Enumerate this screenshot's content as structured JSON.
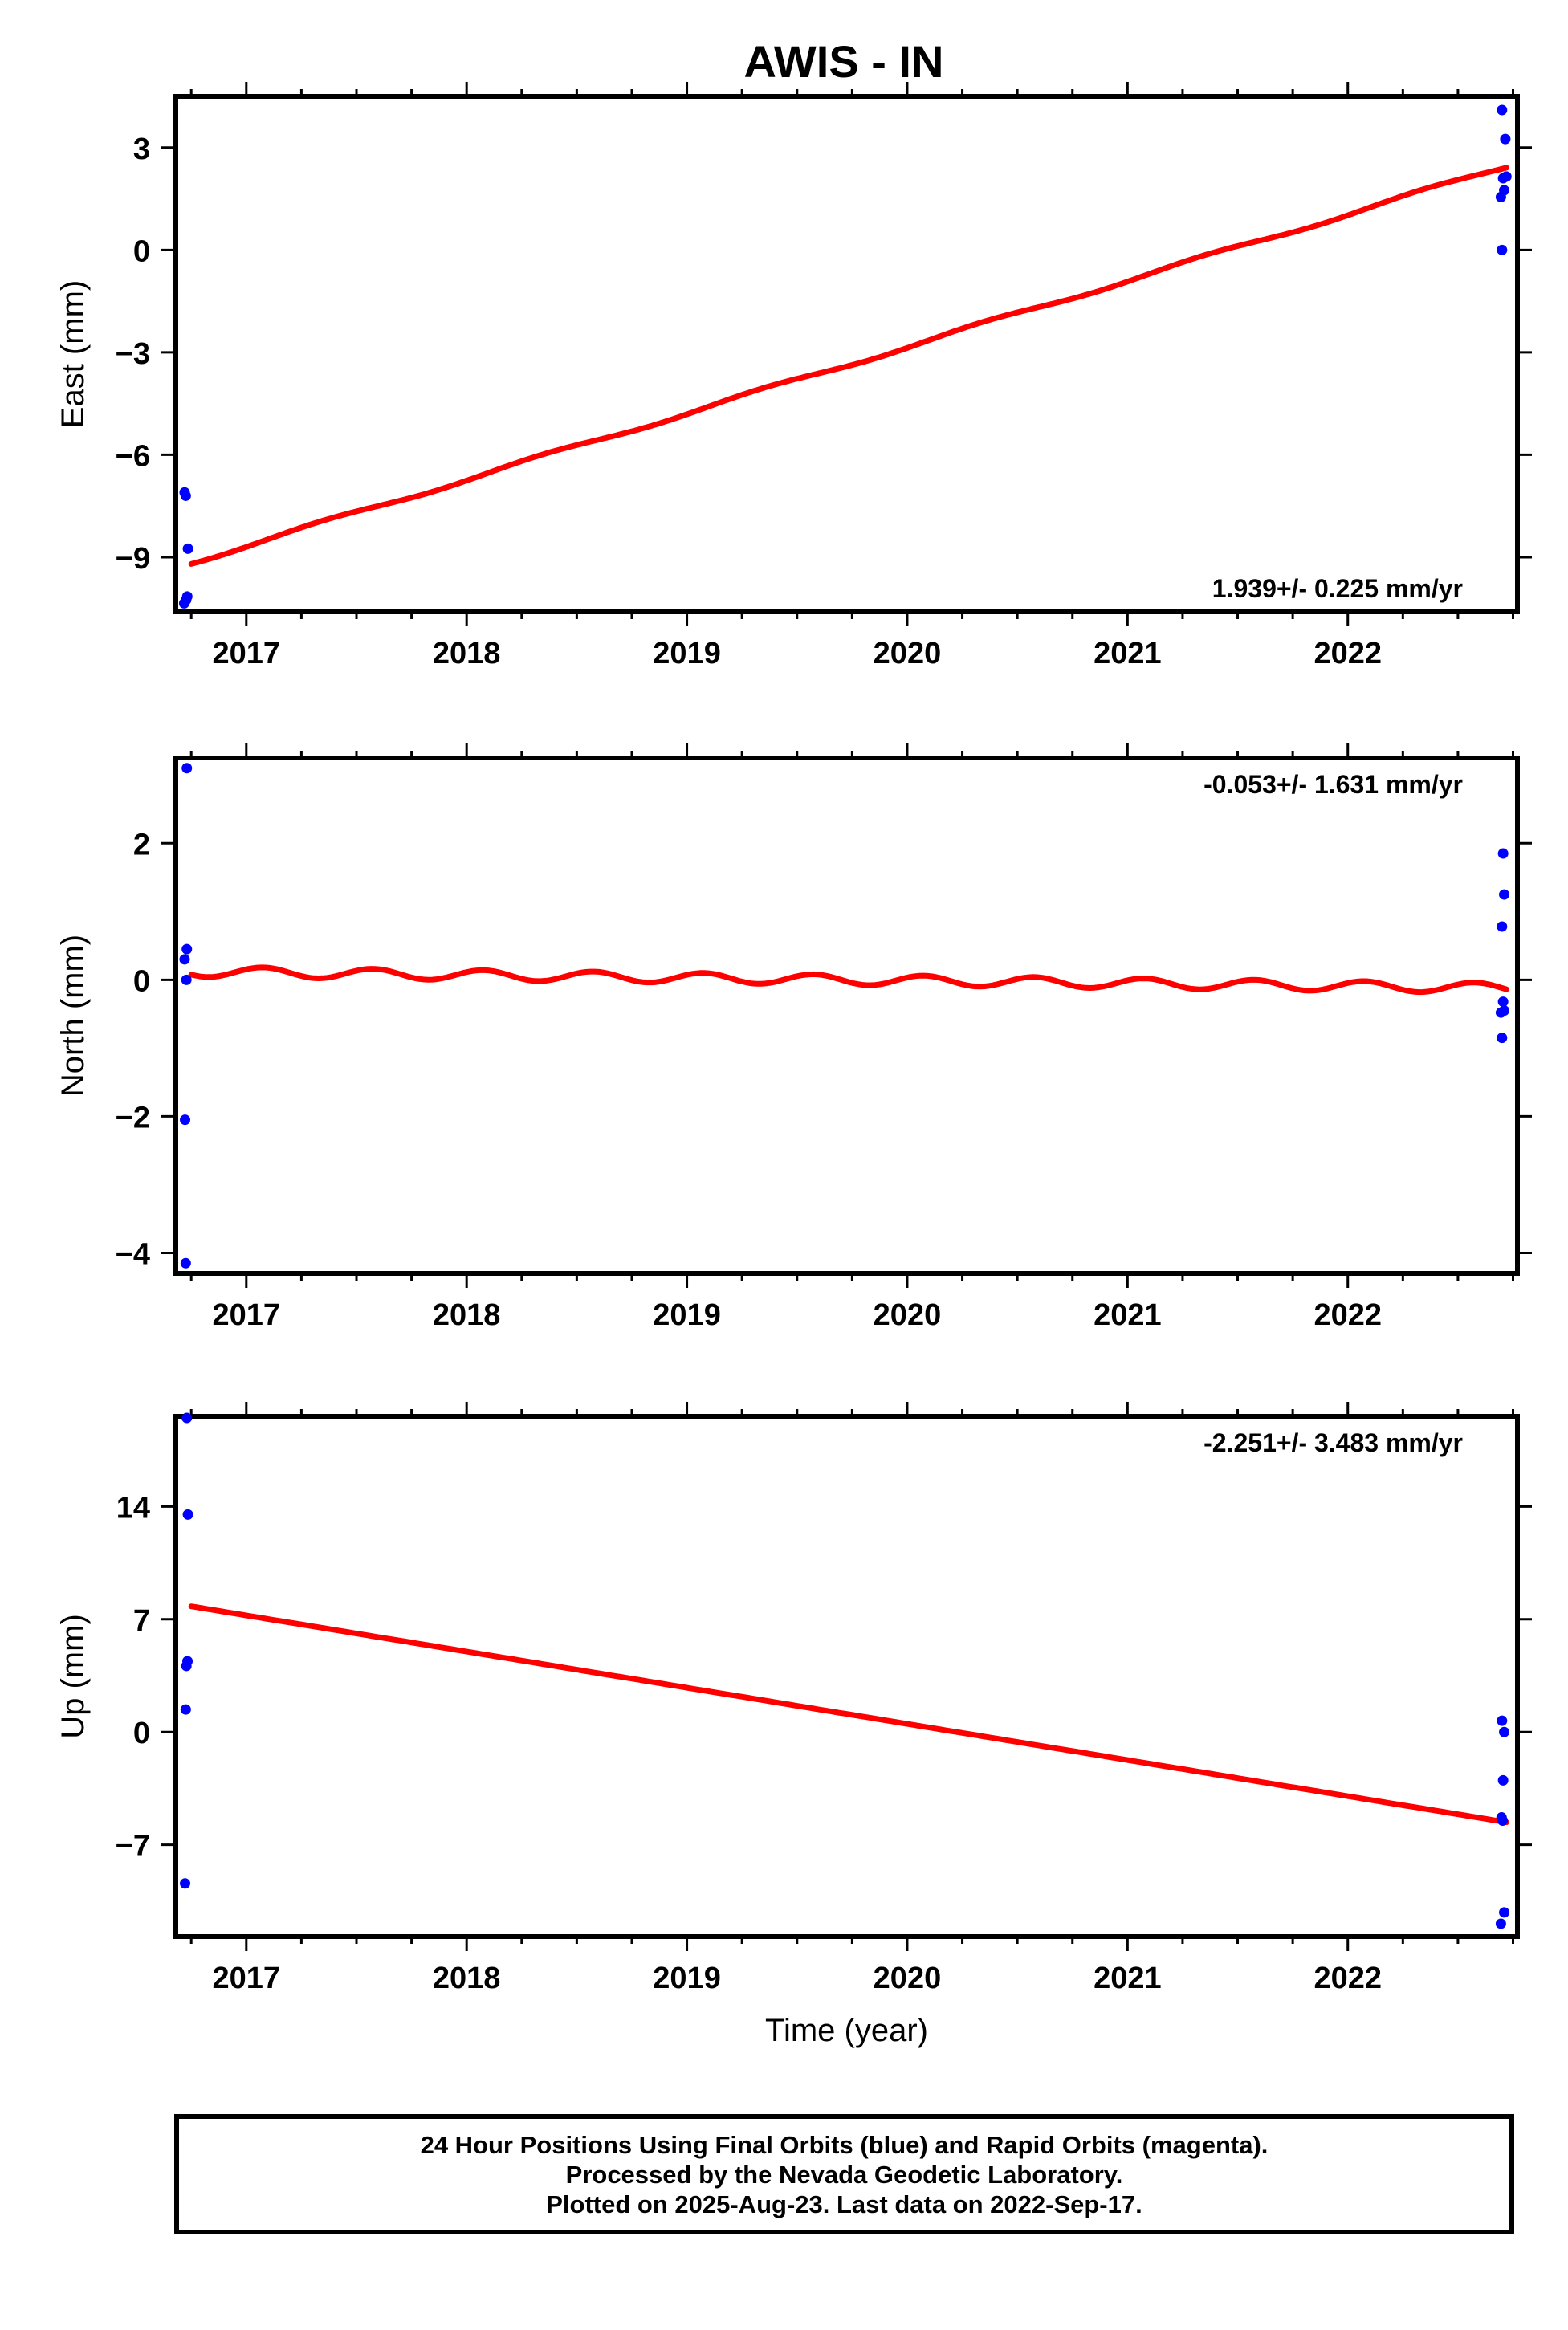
{
  "title": "AWIS - IN",
  "colors": {
    "final_orbits": "#0000ff",
    "trend": "#ff0000",
    "axis": "#000000"
  },
  "chart_data": [
    {
      "type": "scatter",
      "ylabel": "East (mm)",
      "xlim": [
        2016.68,
        2022.77
      ],
      "ylim": [
        -10.6,
        4.5
      ],
      "yticks": [
        -9,
        -6,
        -3,
        0,
        3
      ],
      "xticks": [
        2017,
        2018,
        2019,
        2020,
        2021,
        2022
      ],
      "rate_label": "1.939+/- 0.225 mm/yr",
      "points": [
        [
          2016.72,
          -7.1
        ],
        [
          2016.725,
          -7.2
        ],
        [
          2016.735,
          -8.75
        ],
        [
          2016.718,
          -10.35
        ],
        [
          2016.727,
          -10.25
        ],
        [
          2016.732,
          -10.15
        ],
        [
          2022.7,
          4.1
        ],
        [
          2022.715,
          3.25
        ],
        [
          2022.705,
          2.1
        ],
        [
          2022.72,
          2.15
        ],
        [
          2022.71,
          1.75
        ],
        [
          2022.695,
          1.55
        ],
        [
          2022.7,
          0.0
        ]
      ],
      "trend": {
        "kind": "linear_seasonal",
        "x0": 2016.75,
        "x1": 2022.72,
        "y0": -9.15,
        "y1": 2.45,
        "amp": 0.06,
        "period": 1.0,
        "phase": 2016.1
      }
    },
    {
      "type": "scatter",
      "ylabel": "North (mm)",
      "xlim": [
        2016.68,
        2022.77
      ],
      "ylim": [
        -4.3,
        3.25
      ],
      "yticks": [
        -4,
        -2,
        0,
        2
      ],
      "xticks": [
        2017,
        2018,
        2019,
        2020,
        2021,
        2022
      ],
      "rate_label": "-0.053+/- 1.631 mm/yr",
      "points": [
        [
          2016.73,
          3.1
        ],
        [
          2016.73,
          0.45
        ],
        [
          2016.72,
          0.3
        ],
        [
          2016.728,
          0.0
        ],
        [
          2016.722,
          -2.05
        ],
        [
          2016.725,
          -4.15
        ],
        [
          2022.705,
          1.85
        ],
        [
          2022.71,
          1.25
        ],
        [
          2022.7,
          0.78
        ],
        [
          2022.705,
          -0.32
        ],
        [
          2022.71,
          -0.45
        ],
        [
          2022.695,
          -0.48
        ],
        [
          2022.7,
          -0.85
        ]
      ],
      "trend": {
        "kind": "linear_seasonal",
        "x0": 2016.75,
        "x1": 2022.72,
        "y0": 0.12,
        "y1": -0.12,
        "amp": 0.075,
        "period": 0.5,
        "phase": 2016.95
      }
    },
    {
      "type": "scatter",
      "ylabel": "Up (mm)",
      "xlabel": "Time (year)",
      "xlim": [
        2016.68,
        2022.77
      ],
      "ylim": [
        -12.7,
        19.6
      ],
      "yticks": [
        -7,
        0,
        7,
        14
      ],
      "xticks": [
        2017,
        2018,
        2019,
        2020,
        2021,
        2022
      ],
      "rate_label": "-2.251+/- 3.483 mm/yr",
      "points": [
        [
          2016.73,
          19.5
        ],
        [
          2016.735,
          13.5
        ],
        [
          2016.733,
          4.4
        ],
        [
          2016.728,
          4.1
        ],
        [
          2016.725,
          1.4
        ],
        [
          2016.722,
          -9.4
        ],
        [
          2022.7,
          0.7
        ],
        [
          2022.71,
          0.0
        ],
        [
          2022.705,
          -3.0
        ],
        [
          2022.698,
          -5.3
        ],
        [
          2022.703,
          -5.5
        ],
        [
          2022.71,
          -11.2
        ],
        [
          2022.695,
          -11.9
        ]
      ],
      "trend": {
        "kind": "linear",
        "x0": 2016.75,
        "x1": 2022.72,
        "y0": 7.8,
        "y1": -5.6
      }
    }
  ],
  "footer": {
    "line1": "24 Hour Positions Using Final Orbits (blue) and Rapid Orbits (magenta).",
    "line2": "Processed by the Nevada Geodetic Laboratory.",
    "line3": "Plotted on 2025-Aug-23. Last data on 2022-Sep-17."
  }
}
